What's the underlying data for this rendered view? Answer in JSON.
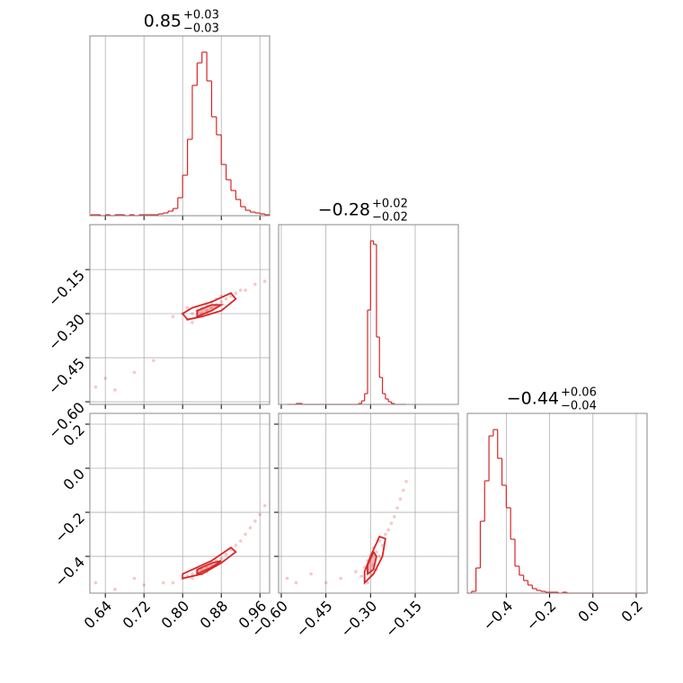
{
  "chart_data": [
    {
      "type": "histogram",
      "title": "0.85",
      "title_sup": "+0.03",
      "title_sub": "−0.03",
      "color": "#d62728",
      "grid": true,
      "bins": [
        0.61,
        0.62,
        0.63,
        0.64,
        0.65,
        0.66,
        0.67,
        0.68,
        0.69,
        0.7,
        0.71,
        0.72,
        0.73,
        0.74,
        0.75,
        0.76,
        0.77,
        0.78,
        0.79,
        0.8,
        0.81,
        0.82,
        0.83,
        0.84,
        0.85,
        0.86,
        0.87,
        0.88,
        0.89,
        0.9,
        0.91,
        0.92,
        0.93,
        0.94,
        0.95,
        0.96,
        0.97,
        0.98
      ],
      "values": [
        1,
        1,
        0,
        1,
        0,
        1,
        1,
        0,
        1,
        0,
        1,
        1,
        1,
        1,
        2,
        3,
        5,
        8,
        20,
        45,
        85,
        145,
        170,
        182,
        150,
        110,
        90,
        57,
        40,
        28,
        18,
        10,
        6,
        4,
        3,
        2,
        1
      ],
      "xlim": [
        0.608,
        0.98
      ],
      "ylim": [
        0,
        200
      ],
      "xticks": [
        0.64,
        0.72,
        {
          "value": 0.8,
          "label": "0.80"
        },
        0.88,
        0.96
      ]
    },
    {
      "type": "scatter",
      "color": "#d62728",
      "grid": true,
      "x": [
        0.62,
        0.64,
        0.66,
        0.7,
        0.74,
        0.78,
        0.8,
        0.81,
        0.81,
        0.82,
        0.82,
        0.83,
        0.83,
        0.84,
        0.84,
        0.85,
        0.85,
        0.86,
        0.86,
        0.87,
        0.87,
        0.88,
        0.88,
        0.89,
        0.9,
        0.91,
        0.92,
        0.93,
        0.95,
        0.97
      ],
      "y": [
        -0.55,
        -0.52,
        -0.56,
        -0.5,
        -0.46,
        -0.31,
        -0.3,
        -0.32,
        -0.28,
        -0.3,
        -0.33,
        -0.29,
        -0.31,
        -0.28,
        -0.3,
        -0.27,
        -0.29,
        -0.28,
        -0.26,
        -0.27,
        -0.25,
        -0.26,
        -0.24,
        -0.25,
        -0.24,
        -0.23,
        -0.22,
        -0.22,
        -0.2,
        -0.19
      ],
      "contours": [
        {
          "x": [
            0.81,
            0.84,
            0.88,
            0.91,
            0.9,
            0.86,
            0.82,
            0.8
          ],
          "y": [
            -0.32,
            -0.31,
            -0.29,
            -0.25,
            -0.23,
            -0.26,
            -0.28,
            -0.3
          ]
        },
        {
          "x": [
            0.83,
            0.86,
            0.88,
            0.86,
            0.83
          ],
          "y": [
            -0.31,
            -0.29,
            -0.27,
            -0.27,
            -0.29
          ]
        }
      ],
      "xlim": [
        0.608,
        0.98
      ],
      "ylim": [
        -0.609,
        0.003
      ],
      "xticks": [
        0.64,
        0.72,
        {
          "value": 0.8,
          "label": "0.80"
        },
        0.88,
        0.96
      ],
      "yticks": [
        {
          "value": -0.6,
          "label": "−0.60"
        },
        {
          "value": -0.45,
          "label": "−0.45"
        },
        {
          "value": -0.3,
          "label": "−0.30"
        },
        {
          "value": -0.15,
          "label": "−0.15"
        }
      ]
    },
    {
      "type": "histogram",
      "title": "−0.28",
      "title_sup": "+0.02",
      "title_sub": "−0.02",
      "color": "#d62728",
      "grid": true,
      "bins": [
        -0.58,
        -0.57,
        -0.56,
        -0.55,
        -0.54,
        -0.53,
        -0.52,
        -0.51,
        -0.5,
        -0.49,
        -0.48,
        -0.47,
        -0.46,
        -0.45,
        -0.44,
        -0.43,
        -0.42,
        -0.41,
        -0.4,
        -0.39,
        -0.38,
        -0.37,
        -0.36,
        -0.35,
        -0.34,
        -0.33,
        -0.32,
        -0.31,
        -0.3,
        -0.29,
        -0.28,
        -0.27,
        -0.26,
        -0.25,
        -0.24,
        -0.23,
        -0.22,
        -0.21,
        -0.2,
        -0.19,
        -0.18
      ],
      "values": [
        0,
        0,
        0,
        1,
        1,
        0,
        0,
        0,
        0,
        0,
        0,
        0,
        0,
        0,
        0,
        0,
        0,
        0,
        0,
        0,
        0,
        0,
        0,
        0,
        1,
        4,
        12,
        105,
        182,
        178,
        75,
        30,
        12,
        6,
        3,
        1,
        0,
        0,
        0,
        0
      ],
      "xlim": [
        -0.609,
        -0.005
      ],
      "ylim": [
        0,
        200
      ],
      "xticks": [
        {
          "value": -0.6,
          "label": "−0.60"
        },
        {
          "value": -0.45,
          "label": "−0.45"
        },
        {
          "value": -0.3,
          "label": "−0.30"
        },
        {
          "value": -0.15,
          "label": "−0.15"
        }
      ]
    },
    {
      "type": "scatter",
      "color": "#d62728",
      "grid": true,
      "x": [
        0.62,
        0.66,
        0.7,
        0.72,
        0.76,
        0.78,
        0.8,
        0.81,
        0.82,
        0.82,
        0.83,
        0.84,
        0.84,
        0.85,
        0.85,
        0.86,
        0.87,
        0.87,
        0.88,
        0.89,
        0.9,
        0.91,
        0.92,
        0.93,
        0.94,
        0.95,
        0.96,
        0.97
      ],
      "y": [
        -0.52,
        -0.55,
        -0.5,
        -0.53,
        -0.52,
        -0.52,
        -0.5,
        -0.49,
        -0.48,
        -0.5,
        -0.47,
        -0.46,
        -0.48,
        -0.45,
        -0.47,
        -0.44,
        -0.42,
        -0.44,
        -0.41,
        -0.39,
        -0.37,
        -0.35,
        -0.33,
        -0.3,
        -0.27,
        -0.24,
        -0.21,
        -0.17
      ],
      "contours": [
        {
          "x": [
            0.8,
            0.84,
            0.88,
            0.91,
            0.9,
            0.86,
            0.82,
            0.8
          ],
          "y": [
            -0.5,
            -0.48,
            -0.43,
            -0.38,
            -0.36,
            -0.42,
            -0.46,
            -0.48
          ]
        },
        {
          "x": [
            0.83,
            0.86,
            0.88,
            0.86,
            0.83
          ],
          "y": [
            -0.48,
            -0.45,
            -0.42,
            -0.43,
            -0.46
          ]
        }
      ],
      "xlim": [
        0.608,
        0.98
      ],
      "ylim": [
        -0.567,
        0.249
      ],
      "xticks": [
        0.64,
        0.72,
        {
          "value": 0.8,
          "label": "0.80"
        },
        0.88,
        0.96
      ],
      "yticks": [
        {
          "value": -0.4,
          "label": "−0.4"
        },
        {
          "value": -0.2,
          "label": "−0.2"
        },
        {
          "value": 0,
          "label": "0.0"
        },
        0.2
      ]
    },
    {
      "type": "scatter",
      "color": "#d62728",
      "grid": true,
      "x": [
        -0.58,
        -0.55,
        -0.5,
        -0.45,
        -0.4,
        -0.35,
        -0.33,
        -0.32,
        -0.31,
        -0.31,
        -0.3,
        -0.3,
        -0.29,
        -0.29,
        -0.28,
        -0.28,
        -0.27,
        -0.27,
        -0.26,
        -0.25,
        -0.24,
        -0.23,
        -0.22,
        -0.21,
        -0.2,
        -0.19,
        -0.18
      ],
      "y": [
        -0.5,
        -0.52,
        -0.48,
        -0.52,
        -0.5,
        -0.47,
        -0.49,
        -0.45,
        -0.52,
        -0.42,
        -0.48,
        -0.4,
        -0.44,
        -0.36,
        -0.46,
        -0.38,
        -0.4,
        -0.33,
        -0.35,
        -0.3,
        -0.28,
        -0.25,
        -0.22,
        -0.18,
        -0.14,
        -0.1,
        -0.06
      ],
      "contours": [
        {
          "x": [
            -0.32,
            -0.29,
            -0.26,
            -0.25,
            -0.27,
            -0.3,
            -0.32
          ],
          "y": [
            -0.52,
            -0.48,
            -0.4,
            -0.32,
            -0.31,
            -0.4,
            -0.47
          ]
        },
        {
          "x": [
            -0.31,
            -0.29,
            -0.28,
            -0.29,
            -0.31
          ],
          "y": [
            -0.48,
            -0.46,
            -0.4,
            -0.38,
            -0.44
          ]
        }
      ],
      "xlim": [
        -0.609,
        -0.005
      ],
      "ylim": [
        -0.567,
        0.249
      ],
      "xticks": [
        {
          "value": -0.6,
          "label": "−0.60"
        },
        {
          "value": -0.45,
          "label": "−0.45"
        },
        {
          "value": -0.3,
          "label": "−0.30"
        },
        {
          "value": -0.15,
          "label": "−0.15"
        }
      ],
      "yticks": [
        {
          "value": -0.4,
          "label": "−0.4"
        },
        {
          "value": -0.2,
          "label": "−0.2"
        },
        {
          "value": 0,
          "label": "0.0"
        },
        0.2
      ]
    },
    {
      "type": "histogram",
      "title": "−0.44",
      "title_sup": "+0.06",
      "title_sub": "−0.04",
      "color": "#d62728",
      "grid": true,
      "bins": [
        -0.58,
        -0.56,
        -0.54,
        -0.52,
        -0.5,
        -0.48,
        -0.46,
        -0.44,
        -0.42,
        -0.4,
        -0.38,
        -0.36,
        -0.34,
        -0.32,
        -0.3,
        -0.28,
        -0.26,
        -0.24,
        -0.22,
        -0.2,
        -0.18,
        -0.16,
        -0.14,
        -0.12,
        -0.1,
        -0.08,
        -0.06,
        -0.04,
        -0.02,
        0,
        0.02,
        0.04,
        0.06,
        0.08,
        0.1,
        0.12,
        0.14,
        0.16,
        0.18,
        0.2,
        0.22,
        0.24
      ],
      "values": [
        0,
        2,
        28,
        80,
        125,
        175,
        182,
        150,
        120,
        95,
        60,
        30,
        20,
        14,
        9,
        5,
        3,
        2,
        1,
        1,
        1,
        0,
        1,
        0,
        0,
        0,
        0,
        0,
        0,
        0,
        0,
        0,
        0,
        0,
        0,
        0,
        0,
        0,
        0,
        0,
        0
      ],
      "xlim": [
        -0.58,
        0.25
      ],
      "ylim": [
        0,
        200
      ],
      "xticks": [
        {
          "value": -0.4,
          "label": "−0.4"
        },
        {
          "value": -0.2,
          "label": "−0.2"
        },
        {
          "value": 0,
          "label": "0.0"
        },
        0.2
      ]
    }
  ]
}
